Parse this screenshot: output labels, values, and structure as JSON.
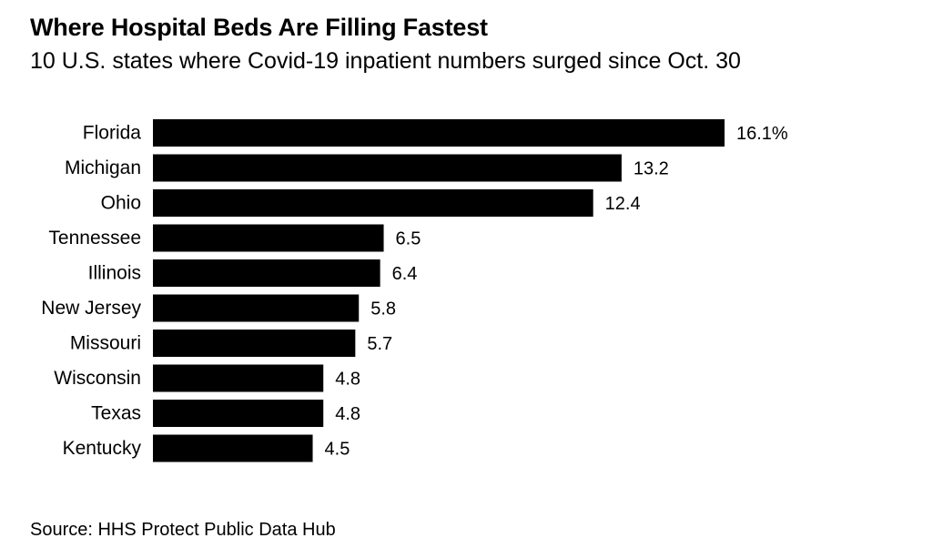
{
  "chart_data": {
    "type": "bar",
    "orientation": "horizontal",
    "title": "Where Hospital Beds Are Filling Fastest",
    "subtitle": "10 U.S. states where Covid-19 inpatient numbers surged since Oct. 30",
    "categories": [
      "Florida",
      "Michigan",
      "Ohio",
      "Tennessee",
      "Illinois",
      "New Jersey",
      "Missouri",
      "Wisconsin",
      "Texas",
      "Kentucky"
    ],
    "values": [
      16.1,
      13.2,
      12.4,
      6.5,
      6.4,
      5.8,
      5.7,
      4.8,
      4.8,
      4.5
    ],
    "value_labels": [
      "16.1%",
      "13.2",
      "12.4",
      "6.5",
      "6.4",
      "5.8",
      "5.7",
      "4.8",
      "4.8",
      "4.5"
    ],
    "xlim": [
      0,
      16.1
    ],
    "xlabel": "",
    "ylabel": "",
    "grid": false,
    "bar_color": "#000000",
    "source": "Source: HHS Protect Public Data Hub"
  }
}
